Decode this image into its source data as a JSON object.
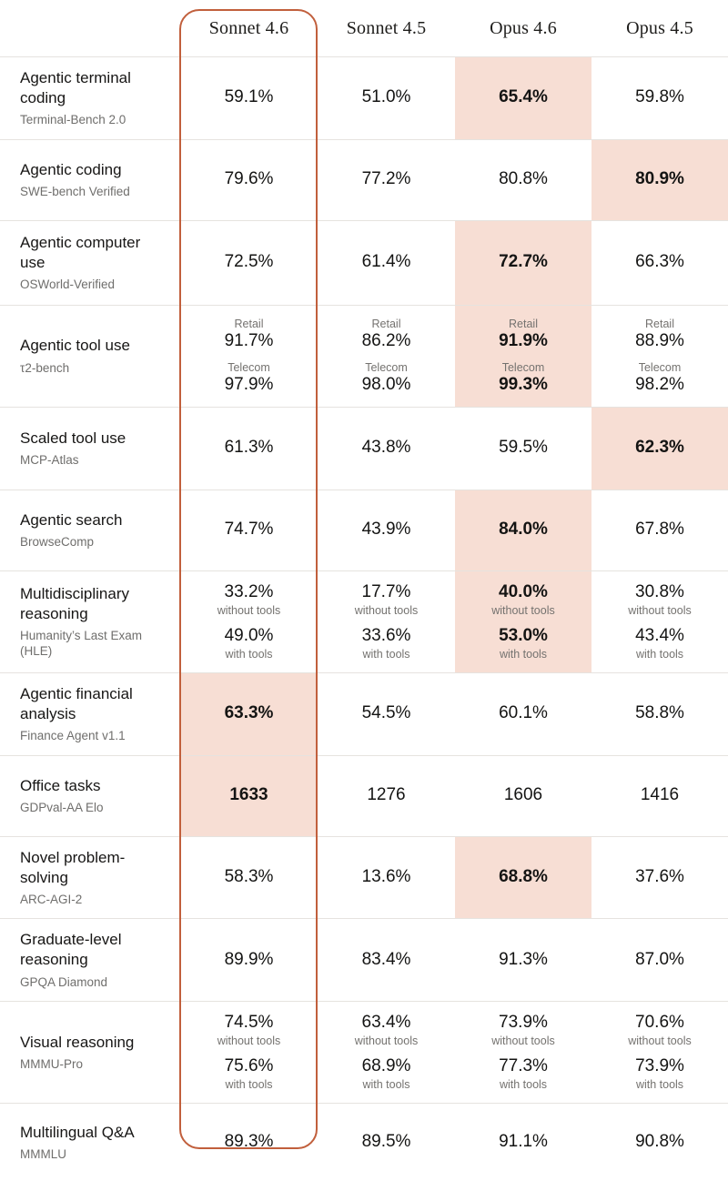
{
  "accent_colors": {
    "frame_border": "#c15f3c",
    "best_score_bg": "#f7ded4",
    "divider": "#e6e3df"
  },
  "chart_data": {
    "type": "table",
    "title": "",
    "columns": [
      "Sonnet 4.6",
      "Sonnet 4.5",
      "Opus 4.6",
      "Opus 4.5"
    ],
    "framed_column": "Sonnet 4.6",
    "rows": [
      {
        "benchmark": "Agentic terminal coding",
        "source": "Terminal-Bench 2.0",
        "cells": [
          {
            "entries": [
              {
                "value": "59.1%"
              }
            ],
            "highlight": false
          },
          {
            "entries": [
              {
                "value": "51.0%"
              }
            ],
            "highlight": false
          },
          {
            "entries": [
              {
                "value": "65.4%"
              }
            ],
            "highlight": true
          },
          {
            "entries": [
              {
                "value": "59.8%"
              }
            ],
            "highlight": false
          }
        ]
      },
      {
        "benchmark": "Agentic coding",
        "source": "SWE-bench Verified",
        "cells": [
          {
            "entries": [
              {
                "value": "79.6%"
              }
            ],
            "highlight": false
          },
          {
            "entries": [
              {
                "value": "77.2%"
              }
            ],
            "highlight": false
          },
          {
            "entries": [
              {
                "value": "80.8%"
              }
            ],
            "highlight": false
          },
          {
            "entries": [
              {
                "value": "80.9%"
              }
            ],
            "highlight": true
          }
        ]
      },
      {
        "benchmark": "Agentic computer use",
        "source": "OSWorld-Verified",
        "cells": [
          {
            "entries": [
              {
                "value": "72.5%"
              }
            ],
            "highlight": false
          },
          {
            "entries": [
              {
                "value": "61.4%"
              }
            ],
            "highlight": false
          },
          {
            "entries": [
              {
                "value": "72.7%"
              }
            ],
            "highlight": true
          },
          {
            "entries": [
              {
                "value": "66.3%"
              }
            ],
            "highlight": false
          }
        ]
      },
      {
        "benchmark": "Agentic tool use",
        "source": "τ2-bench",
        "cells": [
          {
            "entries": [
              {
                "label": "Retail",
                "label_pos": "above",
                "value": "91.7%"
              },
              {
                "label": "Telecom",
                "label_pos": "above",
                "value": "97.9%"
              }
            ],
            "highlight": false
          },
          {
            "entries": [
              {
                "label": "Retail",
                "label_pos": "above",
                "value": "86.2%"
              },
              {
                "label": "Telecom",
                "label_pos": "above",
                "value": "98.0%"
              }
            ],
            "highlight": false
          },
          {
            "entries": [
              {
                "label": "Retail",
                "label_pos": "above",
                "value": "91.9%"
              },
              {
                "label": "Telecom",
                "label_pos": "above",
                "value": "99.3%"
              }
            ],
            "highlight": true
          },
          {
            "entries": [
              {
                "label": "Retail",
                "label_pos": "above",
                "value": "88.9%"
              },
              {
                "label": "Telecom",
                "label_pos": "above",
                "value": "98.2%"
              }
            ],
            "highlight": false
          }
        ]
      },
      {
        "benchmark": "Scaled tool use",
        "source": "MCP-Atlas",
        "cells": [
          {
            "entries": [
              {
                "value": "61.3%"
              }
            ],
            "highlight": false
          },
          {
            "entries": [
              {
                "value": "43.8%"
              }
            ],
            "highlight": false
          },
          {
            "entries": [
              {
                "value": "59.5%"
              }
            ],
            "highlight": false
          },
          {
            "entries": [
              {
                "value": "62.3%"
              }
            ],
            "highlight": true
          }
        ]
      },
      {
        "benchmark": "Agentic search",
        "source": "BrowseComp",
        "cells": [
          {
            "entries": [
              {
                "value": "74.7%"
              }
            ],
            "highlight": false
          },
          {
            "entries": [
              {
                "value": "43.9%"
              }
            ],
            "highlight": false
          },
          {
            "entries": [
              {
                "value": "84.0%"
              }
            ],
            "highlight": true
          },
          {
            "entries": [
              {
                "value": "67.8%"
              }
            ],
            "highlight": false
          }
        ]
      },
      {
        "benchmark": "Multidisciplinary reasoning",
        "source": "Humanity’s Last Exam (HLE)",
        "cells": [
          {
            "entries": [
              {
                "value": "33.2%",
                "label": "without tools",
                "label_pos": "below"
              },
              {
                "value": "49.0%",
                "label": "with tools",
                "label_pos": "below"
              }
            ],
            "highlight": false
          },
          {
            "entries": [
              {
                "value": "17.7%",
                "label": "without tools",
                "label_pos": "below"
              },
              {
                "value": "33.6%",
                "label": "with tools",
                "label_pos": "below"
              }
            ],
            "highlight": false
          },
          {
            "entries": [
              {
                "value": "40.0%",
                "label": "without tools",
                "label_pos": "below"
              },
              {
                "value": "53.0%",
                "label": "with tools",
                "label_pos": "below"
              }
            ],
            "highlight": true
          },
          {
            "entries": [
              {
                "value": "30.8%",
                "label": "without tools",
                "label_pos": "below"
              },
              {
                "value": "43.4%",
                "label": "with tools",
                "label_pos": "below"
              }
            ],
            "highlight": false
          }
        ]
      },
      {
        "benchmark": "Agentic financial analysis",
        "source": "Finance Agent v1.1",
        "cells": [
          {
            "entries": [
              {
                "value": "63.3%"
              }
            ],
            "highlight": true
          },
          {
            "entries": [
              {
                "value": "54.5%"
              }
            ],
            "highlight": false
          },
          {
            "entries": [
              {
                "value": "60.1%"
              }
            ],
            "highlight": false
          },
          {
            "entries": [
              {
                "value": "58.8%"
              }
            ],
            "highlight": false
          }
        ]
      },
      {
        "benchmark": "Office tasks",
        "source": "GDPval-AA Elo",
        "cells": [
          {
            "entries": [
              {
                "value": "1633"
              }
            ],
            "highlight": true
          },
          {
            "entries": [
              {
                "value": "1276"
              }
            ],
            "highlight": false
          },
          {
            "entries": [
              {
                "value": "1606"
              }
            ],
            "highlight": false
          },
          {
            "entries": [
              {
                "value": "1416"
              }
            ],
            "highlight": false
          }
        ]
      },
      {
        "benchmark": "Novel problem-solving",
        "source": "ARC-AGI-2",
        "cells": [
          {
            "entries": [
              {
                "value": "58.3%"
              }
            ],
            "highlight": false
          },
          {
            "entries": [
              {
                "value": "13.6%"
              }
            ],
            "highlight": false
          },
          {
            "entries": [
              {
                "value": "68.8%"
              }
            ],
            "highlight": true
          },
          {
            "entries": [
              {
                "value": "37.6%"
              }
            ],
            "highlight": false
          }
        ]
      },
      {
        "benchmark": "Graduate-level reasoning",
        "source": "GPQA Diamond",
        "cells": [
          {
            "entries": [
              {
                "value": "89.9%"
              }
            ],
            "highlight": false
          },
          {
            "entries": [
              {
                "value": "83.4%"
              }
            ],
            "highlight": false
          },
          {
            "entries": [
              {
                "value": "91.3%"
              }
            ],
            "highlight": false
          },
          {
            "entries": [
              {
                "value": "87.0%"
              }
            ],
            "highlight": false
          }
        ]
      },
      {
        "benchmark": "Visual reasoning",
        "source": "MMMU-Pro",
        "cells": [
          {
            "entries": [
              {
                "value": "74.5%",
                "label": "without tools",
                "label_pos": "below"
              },
              {
                "value": "75.6%",
                "label": "with tools",
                "label_pos": "below"
              }
            ],
            "highlight": false
          },
          {
            "entries": [
              {
                "value": "63.4%",
                "label": "without tools",
                "label_pos": "below"
              },
              {
                "value": "68.9%",
                "label": "with tools",
                "label_pos": "below"
              }
            ],
            "highlight": false
          },
          {
            "entries": [
              {
                "value": "73.9%",
                "label": "without tools",
                "label_pos": "below"
              },
              {
                "value": "77.3%",
                "label": "with tools",
                "label_pos": "below"
              }
            ],
            "highlight": false
          },
          {
            "entries": [
              {
                "value": "70.6%",
                "label": "without tools",
                "label_pos": "below"
              },
              {
                "value": "73.9%",
                "label": "with tools",
                "label_pos": "below"
              }
            ],
            "highlight": false
          }
        ]
      },
      {
        "benchmark": "Multilingual Q&A",
        "source": "MMMLU",
        "cells": [
          {
            "entries": [
              {
                "value": "89.3%"
              }
            ],
            "highlight": false
          },
          {
            "entries": [
              {
                "value": "89.5%"
              }
            ],
            "highlight": false
          },
          {
            "entries": [
              {
                "value": "91.1%"
              }
            ],
            "highlight": false
          },
          {
            "entries": [
              {
                "value": "90.8%"
              }
            ],
            "highlight": false
          }
        ]
      }
    ]
  }
}
